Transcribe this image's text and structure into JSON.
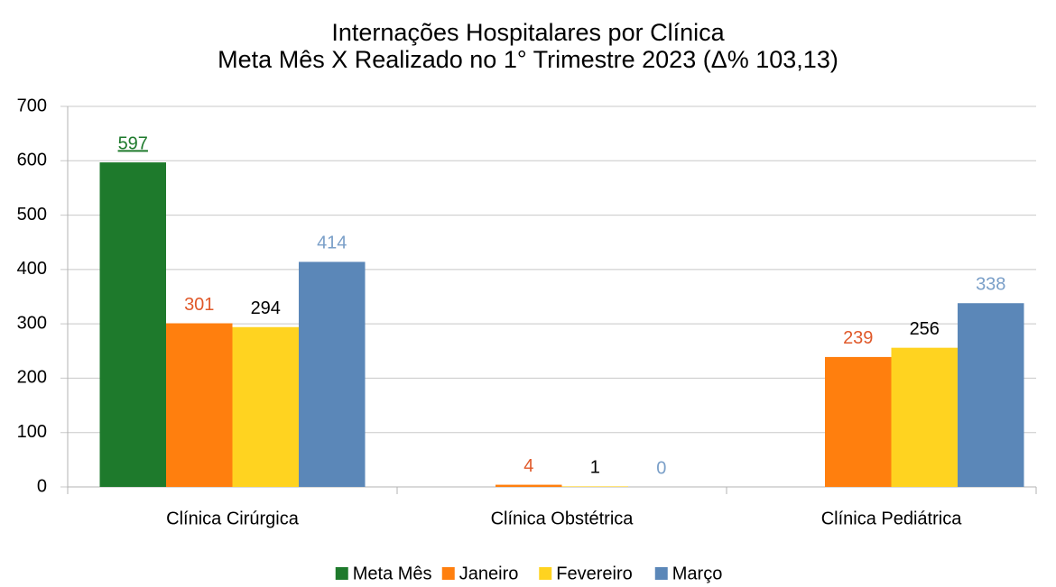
{
  "chart_data": {
    "type": "bar",
    "title": "Internações Hospitalares por Clínica",
    "subtitle": "Meta Mês X Realizado no 1° Trimestre 2023 (Δ% 103,13)",
    "categories": [
      "Clínica Cirúrgica",
      "Clínica Obstétrica",
      "Clínica Pediátrica"
    ],
    "series": [
      {
        "name": "Meta Mês",
        "color": "#1e7a2c",
        "label_color": "#1e7a2c",
        "values": [
          597,
          null,
          null
        ]
      },
      {
        "name": "Janeiro",
        "color": "#ff7f0e",
        "label_color": "#e0592a",
        "values": [
          301,
          4,
          239
        ]
      },
      {
        "name": "Fevereiro",
        "color": "#ffd320",
        "label_color": "#000000",
        "values": [
          294,
          1,
          256
        ]
      },
      {
        "name": "Março",
        "color": "#5b87b8",
        "label_color": "#7a9fc8",
        "values": [
          414,
          0,
          338
        ]
      }
    ],
    "ylim": [
      0,
      700
    ],
    "yticks": [
      0,
      100,
      200,
      300,
      400,
      500,
      600,
      700
    ],
    "grid": true,
    "legend": "bottom"
  }
}
